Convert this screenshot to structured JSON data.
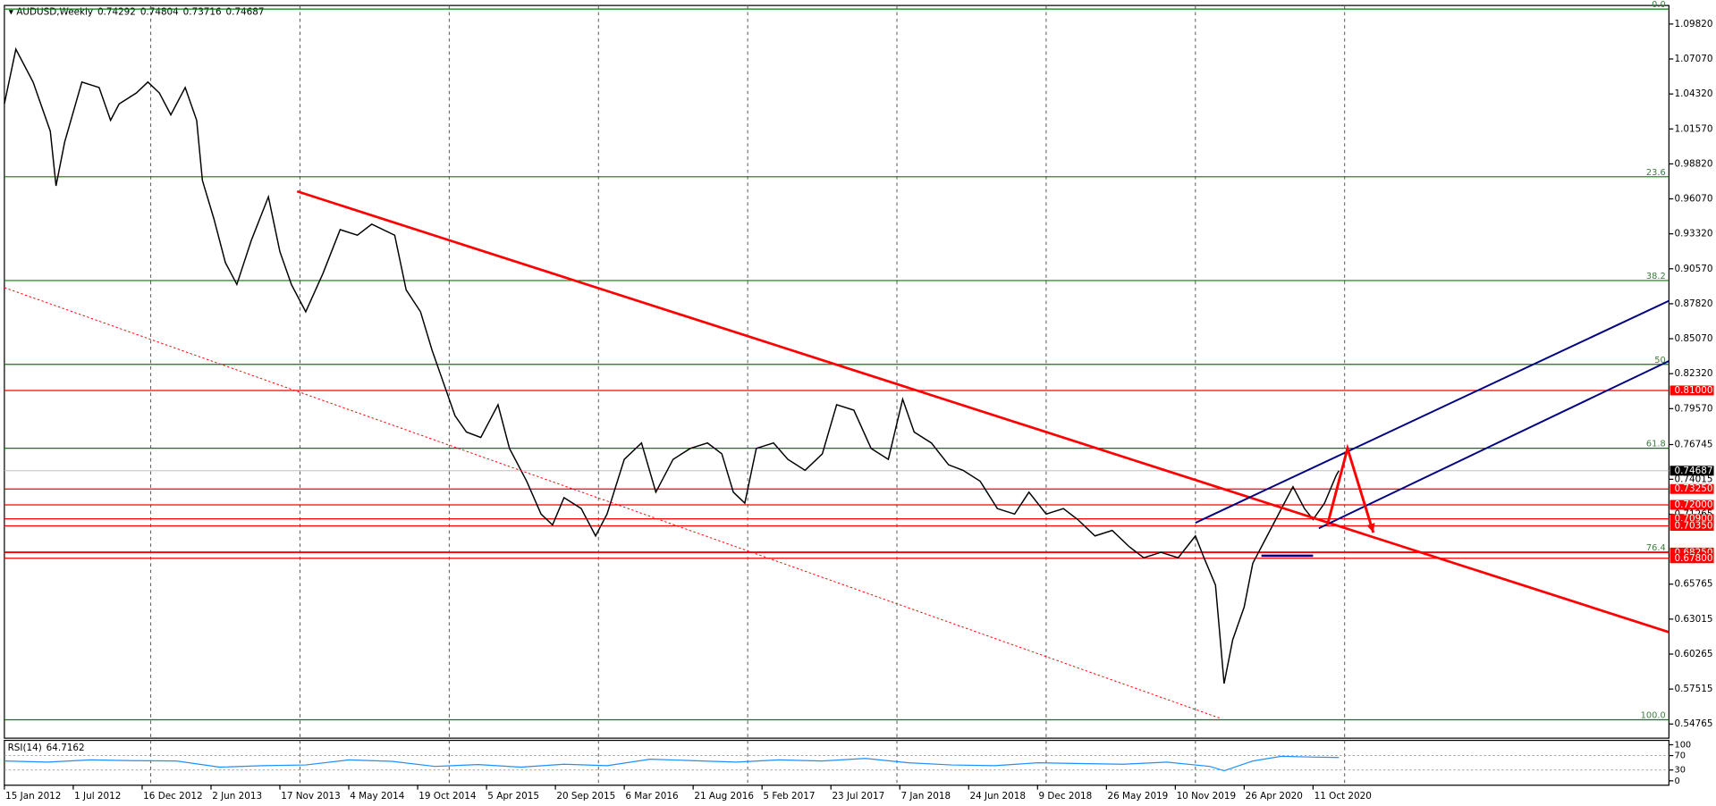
{
  "chart_data": {
    "type": "line",
    "title": "AUDUSD,Weekly",
    "ohlc": [
      0.74292,
      0.74804,
      0.73716,
      0.74687
    ],
    "color": "#000000",
    "x": [
      0,
      4,
      10,
      16,
      18,
      21,
      27,
      33,
      37,
      40,
      46,
      50,
      54,
      58,
      63,
      67,
      69,
      73,
      77,
      81,
      86,
      92,
      96,
      100,
      105,
      111,
      117,
      123,
      128,
      136,
      140,
      145,
      149,
      153,
      157,
      161,
      166,
      172,
      176,
      182,
      187,
      191,
      195,
      201,
      206,
      210,
      216,
      222,
      227,
      233,
      239,
      245,
      250,
      254,
      258,
      262,
      268,
      273,
      279,
      285,
      290,
      296,
      302,
      308,
      313,
      317,
      323,
      329,
      334,
      340,
      346,
      352,
      357,
      363,
      369,
      374,
      380,
      386,
      392,
      397,
      403,
      409,
      415,
      418,
      422,
      425,
      428,
      432,
      435,
      439,
      445,
      449,
      453,
      456,
      460,
      464,
      465
    ],
    "values": [
      1.0354,
      1.0784,
      1.0526,
      1.0139,
      0.9709,
      1.0053,
      1.0526,
      1.0483,
      1.0225,
      1.0354,
      1.044,
      1.0526,
      1.044,
      1.0268,
      1.0483,
      1.0225,
      0.9752,
      0.9451,
      0.9106,
      0.8934,
      0.9278,
      0.9623,
      0.9192,
      0.8934,
      0.8719,
      0.902,
      0.9365,
      0.9321,
      0.9408,
      0.9321,
      0.8891,
      0.8719,
      0.8418,
      0.816,
      0.7902,
      0.7773,
      0.773,
      0.7988,
      0.7644,
      0.7386,
      0.7128,
      0.7042,
      0.7257,
      0.7171,
      0.6956,
      0.7128,
      0.7558,
      0.7687,
      0.73,
      0.7558,
      0.7644,
      0.7687,
      0.7601,
      0.73,
      0.7214,
      0.7644,
      0.7687,
      0.7558,
      0.7472,
      0.7601,
      0.7988,
      0.7945,
      0.7644,
      0.7558,
      0.8031,
      0.7773,
      0.7687,
      0.7515,
      0.7472,
      0.7386,
      0.7171,
      0.7128,
      0.73,
      0.7128,
      0.7171,
      0.7085,
      0.6956,
      0.6999,
      0.687,
      0.6784,
      0.6827,
      0.6784,
      0.6956,
      0.6784,
      0.6569,
      0.5795,
      0.6139,
      0.6397,
      0.6741,
      0.6913,
      0.7171,
      0.7343,
      0.7171,
      0.7085,
      0.7214,
      0.7429,
      0.7469
    ],
    "xlim": [
      0,
      580
    ],
    "xticks": [
      {
        "value": 0,
        "label": "15 Jan 2012"
      },
      {
        "value": 24,
        "label": "1 Jul 2012"
      },
      {
        "value": 48,
        "label": "16 Dec 2012"
      },
      {
        "value": 72,
        "label": "2 Jun 2013"
      },
      {
        "value": 96,
        "label": "17 Nov 2013"
      },
      {
        "value": 120,
        "label": "4 May 2014"
      },
      {
        "value": 144,
        "label": "19 Oct 2014"
      },
      {
        "value": 168,
        "label": "5 Apr 2015"
      },
      {
        "value": 192,
        "label": "20 Sep 2015"
      },
      {
        "value": 216,
        "label": "6 Mar 2016"
      },
      {
        "value": 240,
        "label": "21 Aug 2016"
      },
      {
        "value": 264,
        "label": "5 Feb 2017"
      },
      {
        "value": 288,
        "label": "23 Jul 2017"
      },
      {
        "value": 312,
        "label": "7 Jan 2018"
      },
      {
        "value": 336,
        "label": "24 Jun 2018"
      },
      {
        "value": 360,
        "label": "9 Dec 2018"
      },
      {
        "value": 384,
        "label": "26 May 2019"
      },
      {
        "value": 408,
        "label": "10 Nov 2019"
      },
      {
        "value": 432,
        "label": "26 Apr 2020"
      },
      {
        "value": 456,
        "label": "11 Oct 2020"
      }
    ],
    "xgrid": [
      51,
      103,
      155,
      207,
      259,
      311,
      363,
      415,
      467
    ],
    "ylim": [
      0.5365,
      1.1128
    ],
    "yticks": [
      {
        "value": 1.0982,
        "label": "1.09820"
      },
      {
        "value": 1.0707,
        "label": "1.07070"
      },
      {
        "value": 1.0432,
        "label": "1.04320"
      },
      {
        "value": 1.0157,
        "label": "1.01570"
      },
      {
        "value": 0.9882,
        "label": "0.98820"
      },
      {
        "value": 0.9607,
        "label": "0.96070"
      },
      {
        "value": 0.9332,
        "label": "0.93320"
      },
      {
        "value": 0.9057,
        "label": "0.90570"
      },
      {
        "value": 0.8782,
        "label": "0.87820"
      },
      {
        "value": 0.8507,
        "label": "0.85070"
      },
      {
        "value": 0.8232,
        "label": "0.82320"
      },
      {
        "value": 0.7957,
        "label": "0.79570"
      },
      0.76745,
      0.74015,
      0.71265,
      0.65765,
      0.63015,
      0.60265,
      0.57515,
      0.54765
    ],
    "last_price": 0.74687,
    "levels_color": "#ff0000",
    "levels": [
      {
        "value": 0.81,
        "label": "0.81000"
      },
      {
        "value": 0.7325,
        "label": "0.73250"
      },
      {
        "value": 0.72,
        "label": "0.72000"
      },
      {
        "value": 0.709,
        "label": "0.70900"
      },
      {
        "value": 0.7035,
        "label": "0.70350"
      },
      {
        "value": 0.6825,
        "label": "0.68250"
      },
      {
        "value": 0.678,
        "label": "0.67800"
      }
    ],
    "fib": {
      "high": 1.11,
      "low": 0.551,
      "color": "#008000",
      "levels": [
        {
          "value": 0,
          "label": "0.0"
        },
        23.6,
        38.2,
        50,
        61.8,
        76.4,
        {
          "value": 100,
          "label": "100.0"
        }
      ]
    },
    "trendlines": [
      {
        "color": "#ff0000",
        "style": "thick",
        "points": [
          [
            102,
            0.9666
          ],
          [
            580,
            0.6199
          ]
        ]
      },
      {
        "color": "#ff0000",
        "style": "dotted",
        "points": [
          [
            0,
            0.8909
          ],
          [
            424,
            0.5519
          ]
        ]
      },
      {
        "color": "#000080",
        "style": "solid",
        "points": [
          [
            415,
            0.7059
          ],
          [
            580,
            0.8805
          ]
        ]
      },
      {
        "color": "#000080",
        "style": "solid",
        "points": [
          [
            458,
            0.7016
          ],
          [
            580,
            0.8332
          ]
        ]
      },
      {
        "color": "#000080",
        "style": "thick",
        "points": [
          [
            438,
            0.68
          ],
          [
            456,
            0.68
          ]
        ]
      },
      {
        "color": "#ff0000",
        "style": "arrow",
        "points": [
          [
            461,
            0.7043
          ],
          [
            468,
            0.7644
          ],
          [
            477,
            0.6982
          ]
        ]
      }
    ],
    "rsi": {
      "name": "RSI(14)",
      "value": 64.7162,
      "color": "#1e90ff",
      "x": [
        0,
        15,
        30,
        45,
        60,
        75,
        90,
        105,
        120,
        135,
        150,
        165,
        180,
        195,
        210,
        225,
        240,
        255,
        270,
        285,
        300,
        315,
        330,
        345,
        360,
        375,
        390,
        405,
        420,
        425,
        435,
        445,
        455,
        465
      ],
      "values": [
        55,
        52,
        58,
        56,
        55,
        38,
        42,
        44,
        58,
        54,
        40,
        45,
        38,
        46,
        42,
        60,
        56,
        52,
        58,
        55,
        62,
        50,
        44,
        42,
        50,
        48,
        46,
        52,
        40,
        28,
        55,
        68,
        66,
        64.7
      ],
      "ylim": [
        0,
        100
      ],
      "yticks": [
        100,
        70,
        30,
        0
      ]
    }
  }
}
